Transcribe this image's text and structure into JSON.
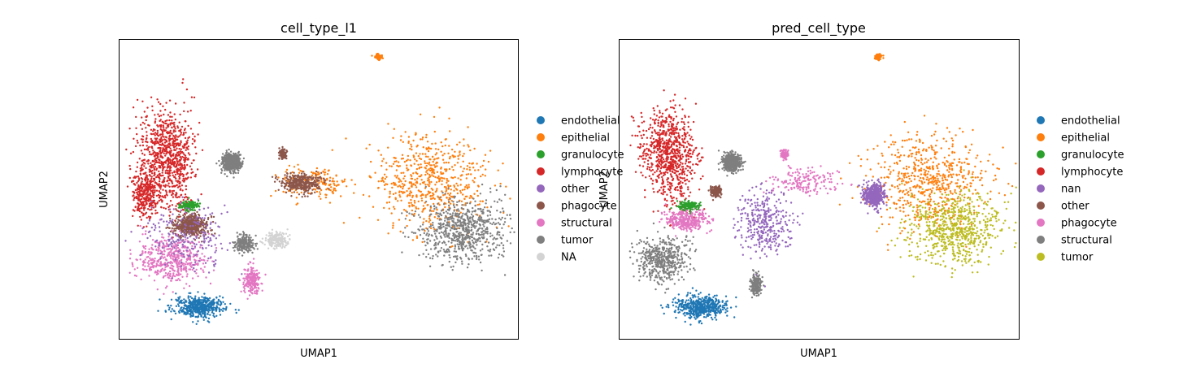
{
  "chart_data": [
    {
      "type": "scatter",
      "title": "cell_type_l1",
      "xlabel": "UMAP1",
      "ylabel": "UMAP2",
      "grid": false,
      "legend_placement": "right, outside plot",
      "series": [
        {
          "name": "endothelial",
          "color": "#1f77b4"
        },
        {
          "name": "epithelial",
          "color": "#ff7f0e"
        },
        {
          "name": "granulocyte",
          "color": "#2ca02c"
        },
        {
          "name": "lymphocyte",
          "color": "#d62728"
        },
        {
          "name": "other",
          "color": "#9467bd"
        },
        {
          "name": "phagocyte",
          "color": "#8c564b"
        },
        {
          "name": "structural",
          "color": "#e377c2"
        },
        {
          "name": "tumor",
          "color": "#7f7f7f"
        },
        {
          "name": "NA",
          "color": "#d3d3d3"
        }
      ]
    },
    {
      "type": "scatter",
      "title": "pred_cell_type",
      "xlabel": "UMAP1",
      "ylabel": "UMAP2",
      "grid": false,
      "legend_placement": "right, outside plot",
      "series": [
        {
          "name": "endothelial",
          "color": "#1f77b4"
        },
        {
          "name": "epithelial",
          "color": "#ff7f0e"
        },
        {
          "name": "granulocyte",
          "color": "#2ca02c"
        },
        {
          "name": "lymphocyte",
          "color": "#d62728"
        },
        {
          "name": "nan",
          "color": "#9467bd"
        },
        {
          "name": "other",
          "color": "#8c564b"
        },
        {
          "name": "phagocyte",
          "color": "#e377c2"
        },
        {
          "name": "structural",
          "color": "#7f7f7f"
        },
        {
          "name": "tumor",
          "color": "#bcbd22"
        }
      ]
    }
  ]
}
